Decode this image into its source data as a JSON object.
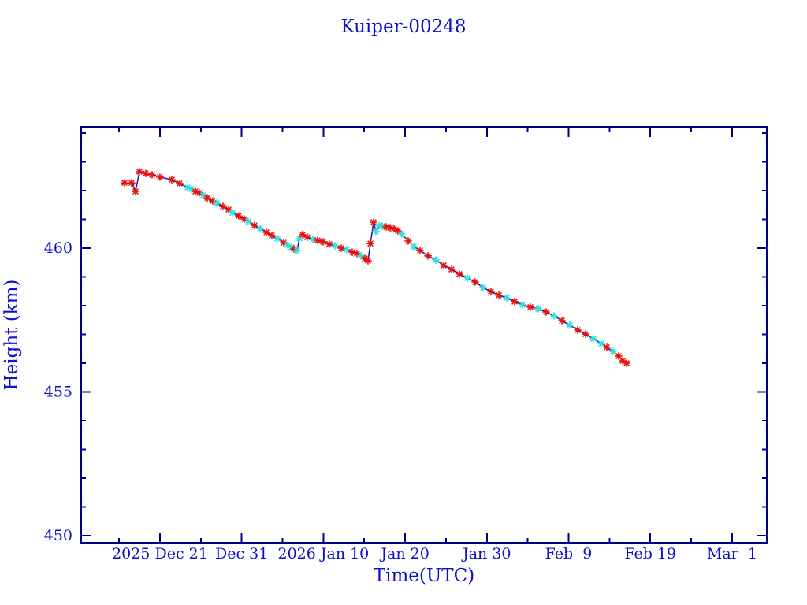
{
  "title": "Kuiper-00248",
  "axes": {
    "x_label": "Time(UTC)",
    "y_label": "Height (km)"
  },
  "colors": {
    "background": "#ffffff",
    "axis": "#00008b",
    "text": "#0f0fc8",
    "line": "#1a1aa6",
    "red_marker": "#e8130c",
    "cyan_marker": "#36dede"
  },
  "chart_data": {
    "type": "line",
    "title": "Kuiper-00248",
    "xlabel": "Time(UTC)",
    "ylabel": "Height (km)",
    "x_unit": "days_since_2025_dec_21",
    "xlim": [
      -9.64,
      74.25
    ],
    "ylim": [
      449.75,
      464.22
    ],
    "grid": false,
    "legend": "none",
    "x_major_ticks": [
      0,
      10,
      20,
      30,
      40,
      50,
      60,
      70
    ],
    "x_major_tick_labels": [
      "2025 Dec 21",
      "Dec 31",
      "2026 Jan 10",
      "Jan 20",
      "Jan 30",
      "Feb  9",
      "Feb 19",
      "Mar  1"
    ],
    "x_minor_ticks": [
      -5,
      5,
      15,
      25,
      35,
      45,
      55,
      65
    ],
    "y_major_ticks": [
      450,
      455,
      460
    ],
    "y_major_tick_labels": [
      "450",
      "455",
      "460"
    ],
    "y_minor_ticks": [
      451,
      452,
      453,
      454,
      456,
      457,
      458,
      459,
      461,
      462,
      463,
      464
    ],
    "series_legend": {
      "r": "red asterisk markers",
      "c": "cyan asterisk markers"
    },
    "point_format": [
      "days_since_2025_dec_21",
      "height_km",
      "marker_color"
    ],
    "points": [
      [
        -4.34,
        462.27,
        "r"
      ],
      [
        -3.47,
        462.27,
        "r"
      ],
      [
        -2.99,
        461.97,
        "r"
      ],
      [
        -2.51,
        462.66,
        "r"
      ],
      [
        -1.74,
        462.6,
        "r"
      ],
      [
        -0.96,
        462.55,
        "r"
      ],
      [
        0,
        462.47,
        "r"
      ],
      [
        1.45,
        462.38,
        "r"
      ],
      [
        2.41,
        462.25,
        "r"
      ],
      [
        3.38,
        462.11,
        "c"
      ],
      [
        3.86,
        462.05,
        "c"
      ],
      [
        4.34,
        461.97,
        "r"
      ],
      [
        4.82,
        461.92,
        "r"
      ],
      [
        5.3,
        461.84,
        "c"
      ],
      [
        5.79,
        461.75,
        "r"
      ],
      [
        6.46,
        461.64,
        "r"
      ],
      [
        6.94,
        461.56,
        "c"
      ],
      [
        7.71,
        461.45,
        "r"
      ],
      [
        8.39,
        461.34,
        "r"
      ],
      [
        8.87,
        461.23,
        "c"
      ],
      [
        9.64,
        461.12,
        "r"
      ],
      [
        10.32,
        461.01,
        "r"
      ],
      [
        10.8,
        460.93,
        "c"
      ],
      [
        11.57,
        460.79,
        "r"
      ],
      [
        12.25,
        460.68,
        "c"
      ],
      [
        13.02,
        460.55,
        "r"
      ],
      [
        13.69,
        460.44,
        "r"
      ],
      [
        14.37,
        460.33,
        "c"
      ],
      [
        15.14,
        460.19,
        "r"
      ],
      [
        15.62,
        460.11,
        "c"
      ],
      [
        16.1,
        460.03,
        "c"
      ],
      [
        16.39,
        459.97,
        "r"
      ],
      [
        16.78,
        459.92,
        "c"
      ],
      [
        17.07,
        460.33,
        "c"
      ],
      [
        17.45,
        460.47,
        "r"
      ],
      [
        18.03,
        460.38,
        "r"
      ],
      [
        18.71,
        460.3,
        "c"
      ],
      [
        19.29,
        460.27,
        "r"
      ],
      [
        19.96,
        460.22,
        "r"
      ],
      [
        20.73,
        460.14,
        "r"
      ],
      [
        21.41,
        460.08,
        "c"
      ],
      [
        22.18,
        460.0,
        "r"
      ],
      [
        22.85,
        459.95,
        "c"
      ],
      [
        23.53,
        459.86,
        "r"
      ],
      [
        24.11,
        459.81,
        "r"
      ],
      [
        24.59,
        459.73,
        "c"
      ],
      [
        25.07,
        459.64,
        "r"
      ],
      [
        25.46,
        459.56,
        "r"
      ],
      [
        25.75,
        460.16,
        "r"
      ],
      [
        26.13,
        460.9,
        "r"
      ],
      [
        26.42,
        460.58,
        "c"
      ],
      [
        26.81,
        460.79,
        "c"
      ],
      [
        27.19,
        460.77,
        "c"
      ],
      [
        27.68,
        460.74,
        "r"
      ],
      [
        28.16,
        460.71,
        "r"
      ],
      [
        28.64,
        460.68,
        "r"
      ],
      [
        29.12,
        460.6,
        "r"
      ],
      [
        29.6,
        460.49,
        "c"
      ],
      [
        30.38,
        460.25,
        "r"
      ],
      [
        31.05,
        460.05,
        "c"
      ],
      [
        31.82,
        459.92,
        "r"
      ],
      [
        32.79,
        459.73,
        "r"
      ],
      [
        33.75,
        459.59,
        "c"
      ],
      [
        34.72,
        459.4,
        "r"
      ],
      [
        35.68,
        459.26,
        "r"
      ],
      [
        36.64,
        459.1,
        "r"
      ],
      [
        37.61,
        458.96,
        "c"
      ],
      [
        38.57,
        458.82,
        "r"
      ],
      [
        39.54,
        458.63,
        "c"
      ],
      [
        40.5,
        458.49,
        "r"
      ],
      [
        41.47,
        458.36,
        "r"
      ],
      [
        42.43,
        458.27,
        "c"
      ],
      [
        43.39,
        458.14,
        "r"
      ],
      [
        44.36,
        458.03,
        "c"
      ],
      [
        45.32,
        457.95,
        "r"
      ],
      [
        46.29,
        457.89,
        "c"
      ],
      [
        47.25,
        457.78,
        "r"
      ],
      [
        48.22,
        457.64,
        "c"
      ],
      [
        49.18,
        457.48,
        "r"
      ],
      [
        50.14,
        457.32,
        "c"
      ],
      [
        51.11,
        457.15,
        "r"
      ],
      [
        52.07,
        457.01,
        "r"
      ],
      [
        53.04,
        456.85,
        "c"
      ],
      [
        54.0,
        456.68,
        "c"
      ],
      [
        54.68,
        456.55,
        "r"
      ],
      [
        55.45,
        456.41,
        "c"
      ],
      [
        56.12,
        456.25,
        "r"
      ],
      [
        56.61,
        456.08,
        "r"
      ],
      [
        57.09,
        456.0,
        "r"
      ]
    ]
  }
}
